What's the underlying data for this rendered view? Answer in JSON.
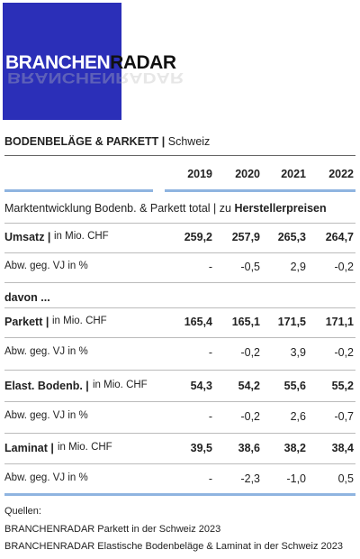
{
  "logo": {
    "text": "BRANCHENRADAR",
    "part1": "BRANCHEN",
    "part2": "RADAR"
  },
  "title": {
    "bold": "BODENBELÄGE & PARKETT |",
    "normal": "Schweiz"
  },
  "table": {
    "years": [
      "2019",
      "2020",
      "2021",
      "2022"
    ],
    "subtitle": {
      "normal": "Marktentwicklung Bodenb. & Parkett total | zu",
      "bold": "Herstellerpreisen"
    },
    "rows": [
      {
        "name": "Umsatz |",
        "unit": "in Mio. CHF",
        "values": [
          "259,2",
          "257,9",
          "265,3",
          "264,7"
        ]
      },
      {
        "name": "",
        "unit": "Abw. geg. VJ in %",
        "values": [
          "-",
          "-0,5",
          "2,9",
          "-0,2"
        ]
      },
      {
        "name": "davon ...",
        "unit": "",
        "values": []
      },
      {
        "name": "Parkett |",
        "unit": "in Mio. CHF",
        "values": [
          "165,4",
          "165,1",
          "171,5",
          "171,1"
        ]
      },
      {
        "name": "",
        "unit": "Abw. geg. VJ in %",
        "values": [
          "-",
          "-0,2",
          "3,9",
          "-0,2"
        ]
      },
      {
        "name": "Elast. Bodenb. |",
        "unit": "in Mio. CHF",
        "values": [
          "54,3",
          "54,2",
          "55,6",
          "55,2"
        ]
      },
      {
        "name": "",
        "unit": "Abw. geg. VJ in %",
        "values": [
          "-",
          "-0,2",
          "2,6",
          "-0,7"
        ]
      },
      {
        "name": "Laminat |",
        "unit": "in Mio. CHF",
        "values": [
          "39,5",
          "38,6",
          "38,2",
          "38,4"
        ]
      },
      {
        "name": "",
        "unit": "Abw. geg. VJ in %",
        "values": [
          "-",
          "-2,3",
          "-1,0",
          "0,5"
        ]
      }
    ]
  },
  "sources": {
    "label": "Quellen:",
    "items": [
      "BRANCHENRADAR Parkett in der Schweiz 2023",
      "BRANCHENRADAR Elastische Bodenbeläge & Laminat in der Schweiz 2023"
    ]
  }
}
